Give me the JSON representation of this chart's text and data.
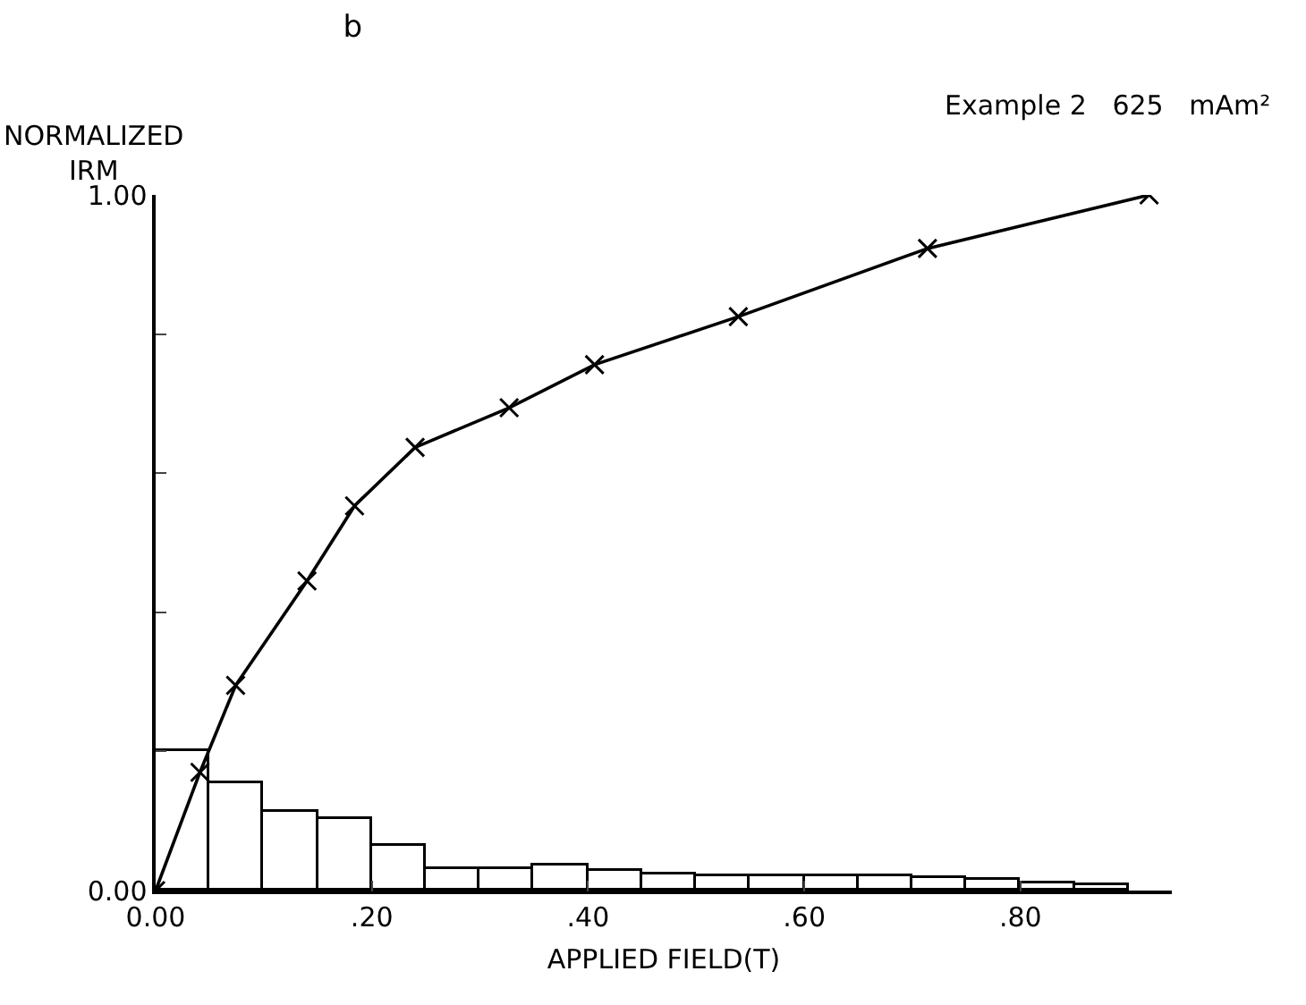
{
  "chart_data": {
    "type": "line",
    "title": "b",
    "subtitle": "Example 2   625   mAm²",
    "xlabel": "APPLIED FIELD(T)",
    "ylabel": "NORMALIZED\nIRM",
    "xlim": [
      0,
      0.94
    ],
    "xticks": [
      {
        "value": 0,
        "label": "0.00"
      },
      {
        "value": 0.2,
        "label": ".20"
      },
      {
        "value": 0.4,
        "label": ".40"
      },
      {
        "value": 0.6,
        "label": ".60"
      },
      {
        "value": 0.8,
        "label": ".80"
      }
    ],
    "ylim": [
      0,
      1
    ],
    "yticks": [
      {
        "value": 0,
        "label": "0.00"
      },
      {
        "value": 0.2,
        "label": null
      },
      {
        "value": 0.4,
        "label": null
      },
      {
        "value": 0.6,
        "label": null
      },
      {
        "value": 0.8,
        "label": null
      },
      {
        "value": 1,
        "label": "1.00"
      }
    ],
    "grid": false,
    "marker": "cross",
    "series": [
      {
        "color": "#000000",
        "x": [
          0,
          0.041,
          0.074,
          0.14,
          0.184,
          0.24,
          0.327,
          0.406,
          0.539,
          0.714,
          0.919
        ],
        "values": [
          0,
          0.17,
          0.295,
          0.445,
          0.553,
          0.637,
          0.694,
          0.756,
          0.825,
          0.923,
          1.0
        ]
      },
      {
        "type": "histogram",
        "color": "#000000",
        "bins": [
          0,
          0.05,
          0.1,
          0.15,
          0.2,
          0.25,
          0.3,
          0.35,
          0.4,
          0.45,
          0.5,
          0.55,
          0.6,
          0.65,
          0.7,
          0.75,
          0.8,
          0.85,
          0.9
        ],
        "values": [
          0.2,
          0.154,
          0.113,
          0.103,
          0.064,
          0.031,
          0.031,
          0.036,
          0.028,
          0.023,
          0.02,
          0.02,
          0.02,
          0.02,
          0.018,
          0.015,
          0.01,
          0.009
        ]
      }
    ]
  }
}
